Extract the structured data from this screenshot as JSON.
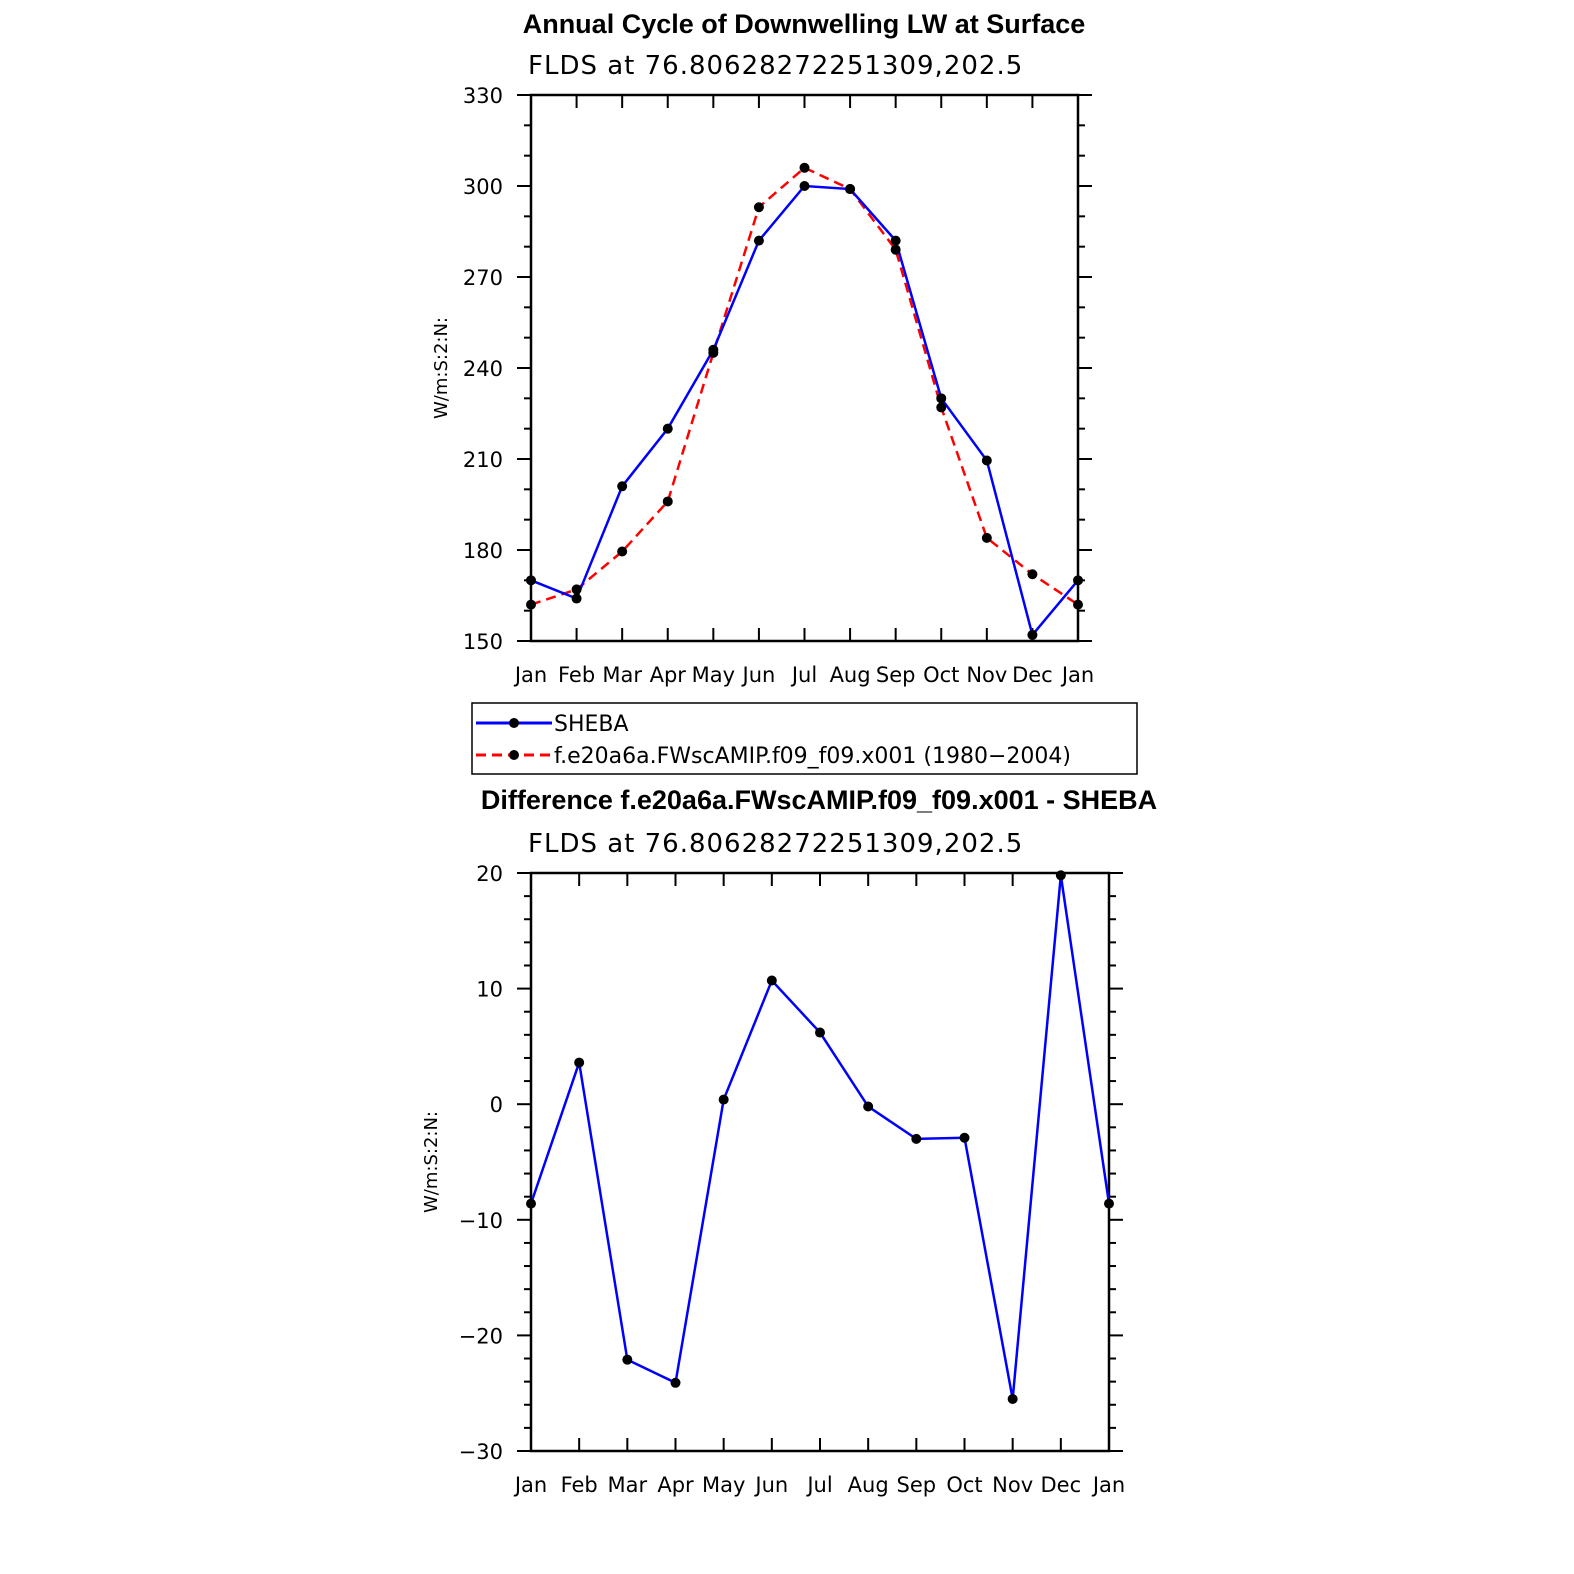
{
  "chart_data": [
    {
      "type": "line",
      "title": "Annual Cycle of Downwelling LW at Surface",
      "subtitle": "FLDS at 76.80628272251309,202.5",
      "ylabel": "W/m:S:2:N:",
      "categories": [
        "Jan",
        "Feb",
        "Mar",
        "Apr",
        "May",
        "Jun",
        "Jul",
        "Aug",
        "Sep",
        "Oct",
        "Nov",
        "Dec",
        "Jan"
      ],
      "ylim": [
        150,
        330
      ],
      "yticks": [
        150,
        180,
        210,
        240,
        270,
        300,
        330
      ],
      "series": [
        {
          "name": "SHEBA",
          "color": "#0000ff",
          "dash": "solid",
          "values": [
            170,
            164,
            201,
            220,
            246,
            282,
            300,
            299,
            282,
            230,
            209.5,
            152,
            170
          ]
        },
        {
          "name": "f.e20a6a.FWscAMIP.f09_f09.x001 (1980−2004)",
          "color": "#ff0000",
          "dash": "dashed",
          "values": [
            162,
            167,
            179.5,
            196,
            245,
            293,
            306,
            299,
            279,
            227,
            184,
            172,
            162
          ]
        }
      ],
      "legend": "below"
    },
    {
      "type": "line",
      "title": "Difference f.e20a6a.FWscAMIP.f09_f09.x001 - SHEBA",
      "subtitle": "FLDS at 76.80628272251309,202.5",
      "ylabel": "W/m:S:2:N:",
      "categories": [
        "Jan",
        "Feb",
        "Mar",
        "Apr",
        "May",
        "Jun",
        "Jul",
        "Aug",
        "Sep",
        "Oct",
        "Nov",
        "Dec",
        "Jan"
      ],
      "ylim": [
        -30,
        20
      ],
      "yticks": [
        -30,
        -20,
        -10,
        0,
        10,
        20
      ],
      "ytick_labels": [
        "−30",
        "−20",
        "−10",
        "0",
        "10",
        "20"
      ],
      "series": [
        {
          "color": "#0000ff",
          "dash": "solid",
          "values": [
            -8.6,
            3.6,
            -22.1,
            -24.1,
            0.4,
            10.7,
            6.2,
            -0.2,
            -3.0,
            -2.9,
            -25.5,
            19.8,
            -8.6
          ]
        }
      ]
    }
  ]
}
